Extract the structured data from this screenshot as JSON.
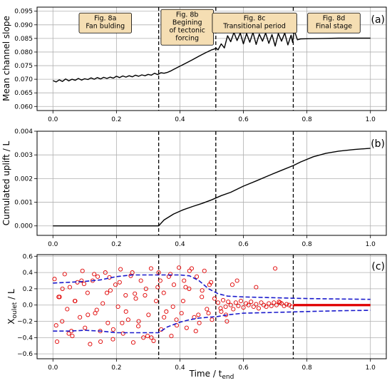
{
  "figure": {
    "xlabel": "Time / t",
    "xlabel_sub": "end"
  },
  "chart_data": [
    {
      "type": "line",
      "panel_label": "(a)",
      "ylabel": "Mean channel slope",
      "xlim": [
        -0.05,
        1.05
      ],
      "ylim": [
        0.0585,
        0.0965
      ],
      "xticks": [
        0.0,
        0.2,
        0.4,
        0.6,
        0.8,
        1.0
      ],
      "xtick_labels": [
        "0.0",
        "0.2",
        "0.4",
        "0.6",
        "0.8",
        "1.0"
      ],
      "yticks": [
        0.06,
        0.065,
        0.07,
        0.075,
        0.08,
        0.085,
        0.09,
        0.095
      ],
      "ytick_labels": [
        "0.060",
        "0.065",
        "0.070",
        "0.075",
        "0.080",
        "0.085",
        "0.090",
        "0.095"
      ],
      "grid": true,
      "vlines": [
        0.333,
        0.513,
        0.757
      ],
      "annotations": [
        {
          "x": 0.165,
          "y": 0.0925,
          "lines": [
            "Fig. 8a",
            "Fan bulding"
          ]
        },
        {
          "x": 0.423,
          "y": 0.0925,
          "lines": [
            "Fig. 8b",
            "Begining",
            "of tectonic",
            "forcing"
          ]
        },
        {
          "x": 0.635,
          "y": 0.0925,
          "lines": [
            "Fig. 8c",
            "Transitional period"
          ]
        },
        {
          "x": 0.885,
          "y": 0.0925,
          "lines": [
            "Fig. 8d",
            "Final stage"
          ]
        }
      ],
      "series": [
        {
          "color": "#000000",
          "x": [
            0.0,
            0.01,
            0.02,
            0.03,
            0.04,
            0.05,
            0.06,
            0.07,
            0.08,
            0.09,
            0.1,
            0.11,
            0.12,
            0.13,
            0.14,
            0.15,
            0.16,
            0.17,
            0.18,
            0.19,
            0.2,
            0.21,
            0.22,
            0.23,
            0.24,
            0.25,
            0.26,
            0.27,
            0.28,
            0.29,
            0.3,
            0.31,
            0.32,
            0.33,
            0.34,
            0.35,
            0.36,
            0.37,
            0.38,
            0.4,
            0.42,
            0.44,
            0.46,
            0.48,
            0.5,
            0.51,
            0.513,
            0.52,
            0.53,
            0.54,
            0.55,
            0.56,
            0.57,
            0.58,
            0.59,
            0.6,
            0.61,
            0.62,
            0.63,
            0.64,
            0.65,
            0.66,
            0.67,
            0.68,
            0.69,
            0.7,
            0.71,
            0.72,
            0.73,
            0.74,
            0.75,
            0.755,
            0.76,
            0.77,
            0.78,
            0.8,
            0.85,
            0.9,
            0.95,
            1.0
          ],
          "y": [
            0.0695,
            0.069,
            0.0698,
            0.0692,
            0.0701,
            0.0694,
            0.07,
            0.0696,
            0.0703,
            0.0697,
            0.0702,
            0.0699,
            0.0705,
            0.07,
            0.0706,
            0.0701,
            0.0707,
            0.0703,
            0.0708,
            0.0704,
            0.0711,
            0.0706,
            0.0712,
            0.0708,
            0.0713,
            0.0709,
            0.0715,
            0.0711,
            0.0716,
            0.0713,
            0.0718,
            0.0715,
            0.0722,
            0.0717,
            0.0724,
            0.0722,
            0.0725,
            0.073,
            0.0736,
            0.0748,
            0.076,
            0.0772,
            0.0785,
            0.0797,
            0.0808,
            0.0812,
            0.0815,
            0.0808,
            0.083,
            0.0815,
            0.086,
            0.0838,
            0.0872,
            0.0842,
            0.087,
            0.083,
            0.0868,
            0.0836,
            0.0872,
            0.0828,
            0.0866,
            0.084,
            0.087,
            0.0832,
            0.0864,
            0.0822,
            0.0868,
            0.084,
            0.087,
            0.0826,
            0.0862,
            0.0835,
            0.088,
            0.0845,
            0.0848,
            0.0849,
            0.085,
            0.0851,
            0.0851,
            0.0851
          ]
        }
      ]
    },
    {
      "type": "line",
      "panel_label": "(b)",
      "ylabel": "Cumulated uplift / L",
      "xlim": [
        -0.05,
        1.05
      ],
      "ylim": [
        -0.0004,
        0.004
      ],
      "xticks": [
        0.0,
        0.2,
        0.4,
        0.6,
        0.8,
        1.0
      ],
      "xtick_labels": [
        "0.0",
        "0.2",
        "0.4",
        "0.6",
        "0.8",
        "1.0"
      ],
      "yticks": [
        0.0,
        0.001,
        0.002,
        0.003,
        0.004
      ],
      "ytick_labels": [
        "0.000",
        "0.001",
        "0.002",
        "0.003",
        "0.004"
      ],
      "grid": true,
      "vlines": [
        0.333,
        0.513,
        0.757
      ],
      "series": [
        {
          "color": "#000000",
          "x": [
            0.0,
            0.1,
            0.2,
            0.3,
            0.333,
            0.35,
            0.38,
            0.41,
            0.44,
            0.47,
            0.5,
            0.53,
            0.56,
            0.6,
            0.64,
            0.68,
            0.72,
            0.757,
            0.78,
            0.82,
            0.86,
            0.9,
            0.95,
            1.0
          ],
          "y": [
            0.0,
            0.0,
            0.0,
            0.0,
            0.0,
            0.00025,
            0.0005,
            0.00068,
            0.00082,
            0.00095,
            0.0011,
            0.00128,
            0.00142,
            0.00168,
            0.0019,
            0.00213,
            0.00235,
            0.00255,
            0.0027,
            0.00292,
            0.00307,
            0.00316,
            0.00323,
            0.00328
          ]
        }
      ]
    },
    {
      "type": "scatter",
      "panel_label": "(c)",
      "ylabel": "X",
      "ylabel_sub": "oulet",
      "ylabel_suffix": " / L",
      "xlim": [
        -0.05,
        1.05
      ],
      "ylim": [
        -0.66,
        0.62
      ],
      "xticks": [
        0.0,
        0.2,
        0.4,
        0.6,
        0.8,
        1.0
      ],
      "xtick_labels": [
        "0.0",
        "0.2",
        "0.4",
        "0.6",
        "0.8",
        "1.0"
      ],
      "yticks": [
        -0.6,
        -0.4,
        -0.2,
        0.0,
        0.2,
        0.4,
        0.6
      ],
      "ytick_labels": [
        "−0.6",
        "−0.4",
        "−0.2",
        "0.0",
        "0.2",
        "0.4",
        "0.6"
      ],
      "grid": true,
      "vlines": [
        0.333,
        0.513,
        0.757
      ],
      "scatter_color": "#e00000",
      "scatter_x": [
        0.005,
        0.013,
        0.021,
        0.029,
        0.037,
        0.045,
        0.053,
        0.061,
        0.069,
        0.077,
        0.085,
        0.093,
        0.101,
        0.109,
        0.117,
        0.125,
        0.133,
        0.141,
        0.149,
        0.157,
        0.165,
        0.173,
        0.181,
        0.189,
        0.197,
        0.205,
        0.213,
        0.221,
        0.229,
        0.237,
        0.245,
        0.253,
        0.261,
        0.269,
        0.277,
        0.285,
        0.293,
        0.301,
        0.309,
        0.317,
        0.325,
        0.333,
        0.341,
        0.349,
        0.357,
        0.365,
        0.373,
        0.381,
        0.389,
        0.397,
        0.405,
        0.413,
        0.421,
        0.429,
        0.437,
        0.445,
        0.453,
        0.461,
        0.469,
        0.477,
        0.485,
        0.493,
        0.501,
        0.509,
        0.01,
        0.03,
        0.05,
        0.07,
        0.09,
        0.11,
        0.13,
        0.15,
        0.17,
        0.19,
        0.21,
        0.23,
        0.25,
        0.27,
        0.29,
        0.31,
        0.33,
        0.35,
        0.37,
        0.39,
        0.41,
        0.43,
        0.45,
        0.47,
        0.49,
        0.018,
        0.058,
        0.098,
        0.138,
        0.178,
        0.218,
        0.258,
        0.298,
        0.338,
        0.378,
        0.418,
        0.458,
        0.498,
        0.52,
        0.528,
        0.536,
        0.544,
        0.552,
        0.56,
        0.568,
        0.576,
        0.584,
        0.592,
        0.6,
        0.608,
        0.616,
        0.624,
        0.632,
        0.64,
        0.648,
        0.656,
        0.664,
        0.672,
        0.68,
        0.688,
        0.696,
        0.704,
        0.712,
        0.72,
        0.728,
        0.736,
        0.744,
        0.752,
        0.565,
        0.58,
        0.64,
        0.7,
        0.715,
        0.53,
        0.548,
        0.545
      ],
      "scatter_y": [
        0.32,
        -0.45,
        0.1,
        -0.2,
        0.38,
        -0.05,
        0.22,
        -0.38,
        0.05,
        0.28,
        -0.15,
        0.42,
        -0.28,
        0.15,
        -0.48,
        0.3,
        -0.1,
        0.35,
        -0.32,
        0.02,
        0.4,
        -0.22,
        0.18,
        -0.42,
        0.25,
        -0.02,
        0.44,
        -0.35,
        0.12,
        -0.18,
        0.36,
        -0.46,
        0.08,
        -0.26,
        0.3,
        -0.4,
        0.2,
        -0.12,
        0.45,
        -0.44,
        0.05,
        0.4,
        -0.3,
        0.15,
        -0.08,
        0.35,
        -0.38,
        0.25,
        -0.18,
        0.46,
        -0.1,
        0.3,
        -0.28,
        0.2,
        0.45,
        -0.15,
        0.35,
        -0.22,
        0.1,
        0.42,
        -0.05,
        0.25,
        -0.18,
        0.08,
        -0.25,
        0.2,
        -0.35,
        0.05,
        0.3,
        -0.12,
        0.38,
        -0.45,
        0.15,
        -0.3,
        0.28,
        -0.08,
        0.4,
        -0.2,
        0.12,
        -0.4,
        0.22,
        -0.15,
        0.38,
        -0.25,
        0.05,
        0.42,
        -0.32,
        0.18,
        -0.1,
        0.1,
        -0.32,
        0.26,
        -0.06,
        0.34,
        -0.22,
        0.14,
        -0.38,
        0.3,
        -0.02,
        0.22,
        -0.12,
        0.28,
        0.03,
        -0.04,
        0.06,
        -0.02,
        0.04,
        0.0,
        -0.05,
        0.03,
        -0.01,
        0.05,
        -0.03,
        0.02,
        0.0,
        0.04,
        -0.02,
        0.01,
        -0.04,
        0.03,
        0.0,
        -0.02,
        0.02,
        -0.01,
        0.03,
        0.0,
        0.04,
        0.02,
        -0.01,
        0.01,
        0.0,
        -0.02,
        0.25,
        0.3,
        0.22,
        0.45,
        0.03,
        -0.08,
        -0.2,
        -0.12
      ],
      "scatter_line": {
        "color": "#e00000",
        "x": [
          0.757,
          1.0
        ],
        "y": [
          0.0,
          0.0
        ]
      },
      "envelope_color": "#1a1acc",
      "envelope_upper": {
        "x": [
          0.0,
          0.05,
          0.1,
          0.15,
          0.2,
          0.25,
          0.3,
          0.333,
          0.36,
          0.4,
          0.43,
          0.46,
          0.49,
          0.52,
          0.55,
          0.6,
          0.7,
          0.8,
          0.9,
          1.0
        ],
        "y": [
          0.27,
          0.28,
          0.29,
          0.31,
          0.35,
          0.37,
          0.37,
          0.37,
          0.37,
          0.37,
          0.36,
          0.3,
          0.2,
          0.14,
          0.11,
          0.1,
          0.09,
          0.08,
          0.075,
          0.07
        ]
      },
      "envelope_lower": {
        "x": [
          0.0,
          0.05,
          0.1,
          0.15,
          0.2,
          0.25,
          0.3,
          0.333,
          0.36,
          0.4,
          0.43,
          0.46,
          0.49,
          0.52,
          0.55,
          0.6,
          0.7,
          0.8,
          0.9,
          1.0
        ],
        "y": [
          -0.32,
          -0.32,
          -0.31,
          -0.32,
          -0.34,
          -0.34,
          -0.34,
          -0.34,
          -0.27,
          -0.21,
          -0.18,
          -0.16,
          -0.15,
          -0.14,
          -0.12,
          -0.1,
          -0.09,
          -0.08,
          -0.07,
          -0.065
        ]
      }
    }
  ]
}
